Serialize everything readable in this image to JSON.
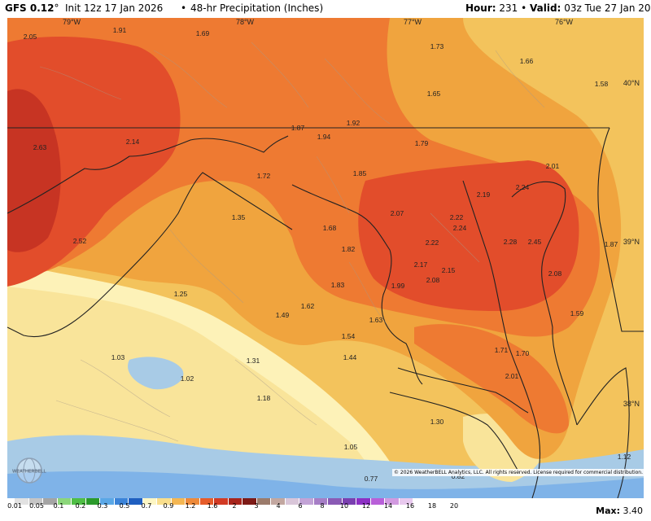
{
  "header": {
    "model": "GFS 0.12",
    "degree": "°",
    "init": "Init 12z 17 Jan 2026",
    "separator": "•",
    "product": "48-hr Precipitation (Inches)",
    "hour_label": "Hour:",
    "hour_value": "231",
    "valid_label": "Valid:",
    "valid_value": "03z Tue 27 Jan 2026"
  },
  "longitude_labels": [
    "79°W",
    "78°W",
    "77°W",
    "76°W"
  ],
  "latitude_labels": [
    "40°N",
    "39°N",
    "38°N"
  ],
  "map_values": [
    "2.05",
    "1.91",
    "1.69",
    "1.73",
    "1.66",
    "1.58",
    "1.65",
    "2.63",
    "2.14",
    "1.87",
    "1.92",
    "1.94",
    "1.79",
    "1.72",
    "1.85",
    "2.01",
    "2.19",
    "2.24",
    "1.35",
    "2.52",
    "1.68",
    "2.07",
    "2.22",
    "2.24",
    "2.28",
    "2.45",
    "1.87",
    "1.82",
    "2.22",
    "2.17",
    "2.15",
    "2.08",
    "2.08",
    "1.83",
    "1.99",
    "1.25",
    "1.62",
    "1.49",
    "1.63",
    "1.59",
    "1.54",
    "1.71",
    "1.70",
    "1.03",
    "1.44",
    "1.31",
    "1.02",
    "2.01",
    "1.18",
    "1.30",
    "1.05",
    "1.12",
    "0.77",
    "0.82"
  ],
  "colors": {
    "lt_0_2": "#7fb3e8",
    "0_2_to_0_9": "#a8cbe6",
    "1_0": "#fdf2b8",
    "1_2": "#f9e49a",
    "1_5": "#f3c35c",
    "1_75": "#f0a43e",
    "2_0": "#ee7a32",
    "2_5": "#e24d2b",
    "3_0": "#c73423",
    "border": "#222222",
    "county": "#a69a8a"
  },
  "legend": {
    "ticks": [
      "0.01",
      "0.05",
      "0.1",
      "0.2",
      "0.3",
      "0.5",
      "0.7",
      "0.9",
      "1.2",
      "1.6",
      "2",
      "3",
      "4",
      "6",
      "8",
      "10",
      "12",
      "14",
      "16",
      "18",
      "20"
    ],
    "colors": [
      "#e2e2e2",
      "#c6c6c6",
      "#a4a4a4",
      "#8bd67a",
      "#4fbe45",
      "#2b9a2b",
      "#5aa7e6",
      "#3b83d8",
      "#1f5fc0",
      "#fdf6c4",
      "#f9de8c",
      "#f4b753",
      "#ee8a3a",
      "#e65c2a",
      "#d23a24",
      "#a8251c",
      "#7d1a16",
      "#9b7b6b",
      "#c2a7a0",
      "#d9c6d9",
      "#c2a3d6",
      "#a67ec6",
      "#8a5ab5",
      "#7a3fb0",
      "#8c2fc4",
      "#b85fd8",
      "#d29ae0",
      "#e8c9ee"
    ],
    "max_label": "Max:",
    "max_value": "3.40"
  },
  "copyright": "© 2026 WeatherBELL Analytics, LLC. All rights reserved. License required for commercial distribution.",
  "logo_text": "WEATHERBELL",
  "icons": {
    "logo": "weatherbell-globe-icon"
  }
}
